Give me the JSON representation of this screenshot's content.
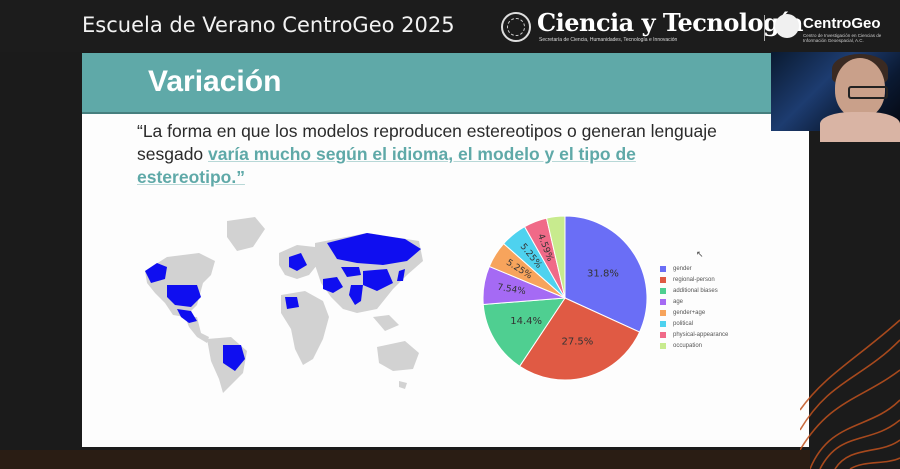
{
  "header": {
    "event_title": "Escuela de Verano CentroGeo 2025",
    "brand_name": "Ciencia y Tecnología",
    "brand_subtitle": "Secretaría de Ciencia, Humanidades, Tecnología e Innovación",
    "centrogeo_name": "CentroGeo",
    "centrogeo_subtitle": "Centro de Investigación en Ciencias de Información Geoespacial, A.C."
  },
  "slide": {
    "title": "Variación",
    "quote_plain": "“La forma en que los modelos reproducen estereotipos o generan lenguaje sesgado ",
    "quote_highlight": "varía mucho según el idioma, el modelo y el tipo de estereotipo.”"
  },
  "chart_data": {
    "type": "pie",
    "title": "",
    "categories": [
      "gender",
      "regional-person",
      "additional biases",
      "age",
      "gender+age",
      "political",
      "physical-appearance",
      "occupation"
    ],
    "values": [
      31.8,
      27.5,
      14.4,
      7.54,
      5.25,
      5.25,
      4.59,
      3.61
    ],
    "labels": [
      "31.8%",
      "27.5%",
      "14.4%",
      "7.54%",
      "5.25%",
      "5.25%",
      "4.59%",
      "3.61%"
    ],
    "colors": [
      "#6a6ef6",
      "#e05a44",
      "#4fcf91",
      "#a56af4",
      "#f7a45c",
      "#4ed2ef",
      "#f06a88",
      "#c8eb8e"
    ],
    "legend_position": "right"
  },
  "colors": {
    "accent": "#5fa9a8",
    "map_highlight": "#0f0ef0",
    "map_land": "#d2d2d2"
  }
}
